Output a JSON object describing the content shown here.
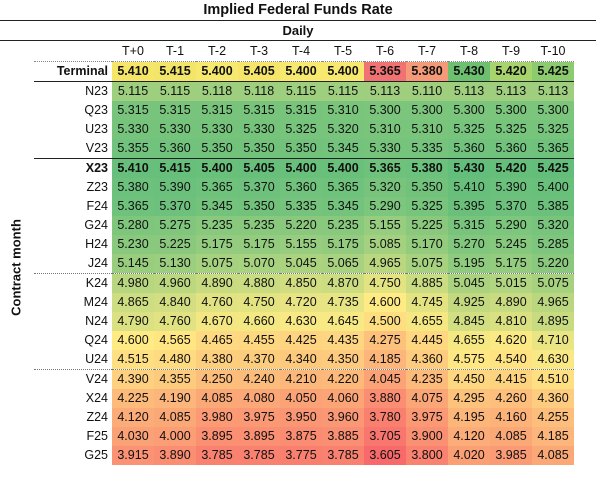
{
  "title": "Implied Federal Funds Rate",
  "subtitle": "Daily",
  "ylabel": "Contract month",
  "chart_data": {
    "type": "table",
    "title": "Implied Federal Funds Rate",
    "subtitle": "Daily",
    "ylabel": "Contract month",
    "columns": [
      "T+0",
      "T-1",
      "T-2",
      "T-3",
      "T-4",
      "T-5",
      "T-6",
      "T-7",
      "T-8",
      "T-9",
      "T-10"
    ],
    "rows": [
      {
        "label": "Terminal",
        "values": [
          5.41,
          5.415,
          5.4,
          5.405,
          5.4,
          5.4,
          5.365,
          5.38,
          5.43,
          5.42,
          5.425
        ]
      },
      {
        "label": "N23",
        "values": [
          5.115,
          5.115,
          5.118,
          5.118,
          5.115,
          5.115,
          5.113,
          5.11,
          5.113,
          5.113,
          5.113
        ]
      },
      {
        "label": "Q23",
        "values": [
          5.315,
          5.315,
          5.315,
          5.315,
          5.315,
          5.31,
          5.3,
          5.3,
          5.3,
          5.3,
          5.3
        ]
      },
      {
        "label": "U23",
        "values": [
          5.33,
          5.33,
          5.33,
          5.33,
          5.325,
          5.32,
          5.31,
          5.31,
          5.325,
          5.325,
          5.325
        ]
      },
      {
        "label": "V23",
        "values": [
          5.355,
          5.36,
          5.35,
          5.35,
          5.35,
          5.345,
          5.33,
          5.335,
          5.36,
          5.36,
          5.365
        ]
      },
      {
        "label": "X23",
        "values": [
          5.41,
          5.415,
          5.4,
          5.405,
          5.4,
          5.4,
          5.365,
          5.38,
          5.43,
          5.42,
          5.425
        ]
      },
      {
        "label": "Z23",
        "values": [
          5.38,
          5.39,
          5.365,
          5.37,
          5.36,
          5.365,
          5.32,
          5.35,
          5.41,
          5.39,
          5.4
        ]
      },
      {
        "label": "F24",
        "values": [
          5.365,
          5.37,
          5.345,
          5.35,
          5.335,
          5.345,
          5.29,
          5.325,
          5.395,
          5.37,
          5.385
        ]
      },
      {
        "label": "G24",
        "values": [
          5.28,
          5.275,
          5.235,
          5.235,
          5.22,
          5.235,
          5.155,
          5.225,
          5.315,
          5.29,
          5.32
        ]
      },
      {
        "label": "H24",
        "values": [
          5.23,
          5.225,
          5.175,
          5.175,
          5.155,
          5.175,
          5.085,
          5.17,
          5.27,
          5.245,
          5.285
        ]
      },
      {
        "label": "J24",
        "values": [
          5.145,
          5.13,
          5.075,
          5.07,
          5.045,
          5.065,
          4.965,
          5.075,
          5.195,
          5.175,
          5.22
        ]
      },
      {
        "label": "K24",
        "values": [
          4.98,
          4.96,
          4.89,
          4.88,
          4.85,
          4.87,
          4.75,
          4.885,
          5.045,
          5.015,
          5.075
        ]
      },
      {
        "label": "M24",
        "values": [
          4.865,
          4.84,
          4.76,
          4.75,
          4.72,
          4.735,
          4.6,
          4.745,
          4.925,
          4.89,
          4.965
        ]
      },
      {
        "label": "N24",
        "values": [
          4.79,
          4.76,
          4.67,
          4.66,
          4.63,
          4.645,
          4.5,
          4.655,
          4.845,
          4.81,
          4.895
        ]
      },
      {
        "label": "Q24",
        "values": [
          4.6,
          4.565,
          4.465,
          4.455,
          4.425,
          4.435,
          4.275,
          4.445,
          4.655,
          4.62,
          4.71
        ]
      },
      {
        "label": "U24",
        "values": [
          4.515,
          4.48,
          4.38,
          4.37,
          4.34,
          4.35,
          4.185,
          4.36,
          4.575,
          4.54,
          4.63
        ]
      },
      {
        "label": "V24",
        "values": [
          4.39,
          4.355,
          4.25,
          4.24,
          4.21,
          4.22,
          4.045,
          4.235,
          4.45,
          4.415,
          4.51
        ]
      },
      {
        "label": "X24",
        "values": [
          4.225,
          4.19,
          4.085,
          4.08,
          4.05,
          4.06,
          3.88,
          4.075,
          4.295,
          4.26,
          4.36
        ]
      },
      {
        "label": "Z24",
        "values": [
          4.12,
          4.085,
          3.98,
          3.975,
          3.95,
          3.96,
          3.78,
          3.975,
          4.195,
          4.16,
          4.255
        ]
      },
      {
        "label": "F25",
        "values": [
          4.03,
          4.0,
          3.895,
          3.895,
          3.875,
          3.885,
          3.705,
          3.9,
          4.12,
          4.085,
          4.185
        ]
      },
      {
        "label": "G25",
        "values": [
          3.915,
          3.89,
          3.785,
          3.785,
          3.775,
          3.785,
          3.605,
          3.8,
          4.02,
          3.985,
          4.085
        ]
      }
    ],
    "bold_rows": [
      "Terminal",
      "X23"
    ],
    "terminal_row_colors": [
      "#f5e66a",
      "#f3e46a",
      "#f7e870",
      "#f5e66b",
      "#f7e870",
      "#f7e870",
      "#f07272",
      "#f59a78",
      "#6cc070",
      "#a8d46e",
      "#8ccc6e"
    ],
    "body_color_scale": {
      "low": "#f8696b",
      "mid": "#ffeb84",
      "high": "#63be7b",
      "min": 3.605,
      "mid_value": 4.6,
      "max": 5.43
    }
  }
}
